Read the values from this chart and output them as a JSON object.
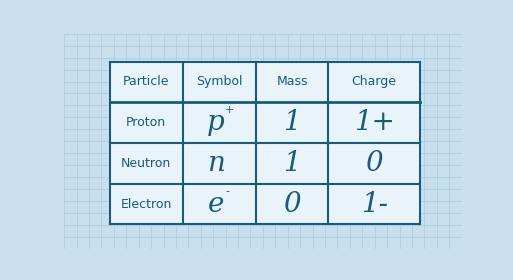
{
  "background_color": "#c8e0ee",
  "grid_color": "#aaccdd",
  "table_bg": "#e8f4fa",
  "border_color": "#1a5a7a",
  "text_color": "#1a5a7a",
  "header_row": [
    "Particle",
    "Symbol",
    "Mass",
    "Charge"
  ],
  "rows": [
    {
      "particle": "Proton",
      "symbol_main": "p",
      "symbol_sup": "+",
      "symbol_sub": "",
      "mass": "1",
      "charge": "1+"
    },
    {
      "particle": "Neutron",
      "symbol_main": "n",
      "symbol_sup": "",
      "symbol_sub": "",
      "mass": "1",
      "charge": "0"
    },
    {
      "particle": "Electron",
      "symbol_main": "e",
      "symbol_sup": "",
      "symbol_sub": "-",
      "mass": "0",
      "charge": "1-"
    }
  ],
  "header_fontsize": 9,
  "particle_fontsize": 9,
  "symbol_fontsize": 20,
  "value_fontsize": 20,
  "charge_fontsize": 20,
  "sup_fontsize": 8,
  "sub_fontsize": 8
}
